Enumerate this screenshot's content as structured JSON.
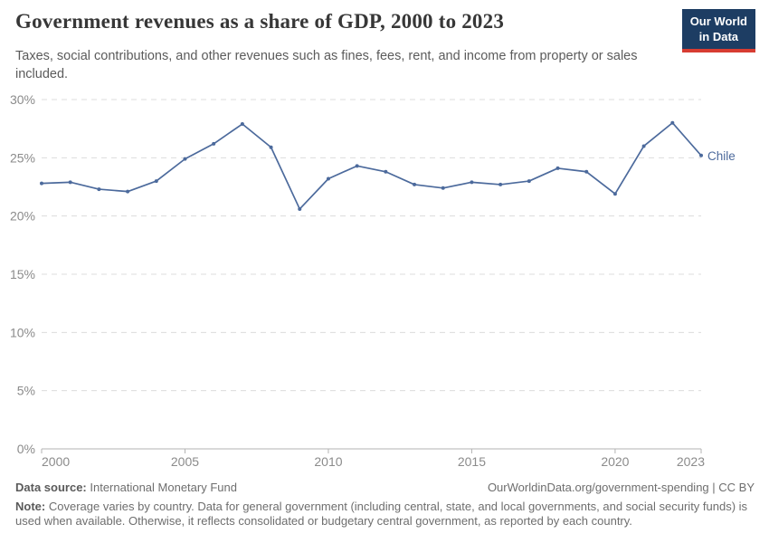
{
  "header": {
    "title": "Government revenues as a share of GDP, 2000 to 2023",
    "subtitle": "Taxes, social contributions, and other revenues such as fines, fees, rent, and income from property or sales included.",
    "logo": {
      "line1": "Our World",
      "line2": "in Data",
      "bg_color": "#1d3d63",
      "accent_color": "#d73c32"
    }
  },
  "chart_data": {
    "type": "line",
    "title": "Government revenues as a share of GDP, 2000 to 2023",
    "xlabel": "",
    "ylabel": "",
    "xlim": [
      2000,
      2023
    ],
    "ylim": [
      0,
      30
    ],
    "x_ticks": [
      2000,
      2005,
      2010,
      2015,
      2020,
      2023
    ],
    "y_ticks": [
      0,
      5,
      10,
      15,
      20,
      25,
      30
    ],
    "y_tick_suffix": "%",
    "grid": "horizontal-dashed",
    "legend_position": "end-of-line-label",
    "colors": {
      "grid": "#dcdcdc",
      "axis": "#b3b3b3",
      "tick_text": "#8b8b8b"
    },
    "series": [
      {
        "name": "Chile",
        "color": "#4C6A9C",
        "x": [
          2000,
          2001,
          2002,
          2003,
          2004,
          2005,
          2006,
          2007,
          2008,
          2009,
          2010,
          2011,
          2012,
          2013,
          2014,
          2015,
          2016,
          2017,
          2018,
          2019,
          2020,
          2021,
          2022,
          2023
        ],
        "values": [
          22.8,
          22.9,
          22.3,
          22.1,
          23.0,
          24.9,
          26.2,
          27.9,
          25.9,
          20.6,
          23.2,
          24.3,
          23.8,
          22.7,
          22.4,
          22.9,
          22.7,
          23.0,
          24.1,
          23.8,
          21.9,
          26.0,
          28.0,
          25.2
        ]
      }
    ]
  },
  "footer": {
    "source_label": "Data source:",
    "source_value": "International Monetary Fund",
    "link": "OurWorldinData.org/government-spending | CC BY",
    "note_label": "Note:",
    "note_text": "Coverage varies by country. Data for general government (including central, state, and local governments, and social security funds) is used when available. Otherwise, it reflects consolidated or budgetary central government, as reported by each country."
  }
}
